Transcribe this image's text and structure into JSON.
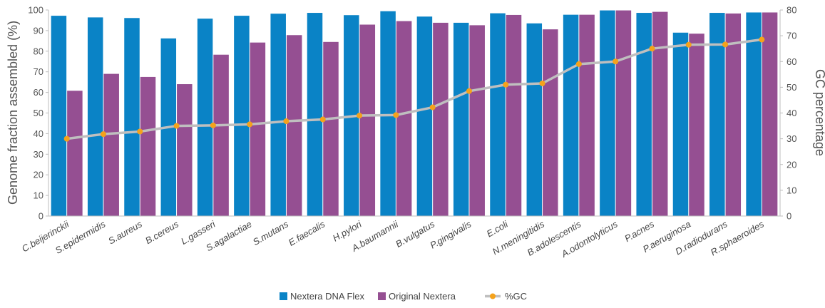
{
  "chart_data": {
    "type": "bar",
    "categories": [
      "C.beijerinckii",
      "S.epidermidis",
      "S.aureus",
      "B.cereus",
      "L.gasseri",
      "S.agalactiae",
      "S.mutans",
      "E.faecalis",
      "H.pylori",
      "A.baumannii",
      "B.vulgatus",
      "P.gingivalis",
      "E.coli",
      "N.meningitidis",
      "B.adolescentis",
      "A.odontolyticus",
      "P.acnes",
      "P.aeruginosa",
      "D.radiodurans",
      "R.sphaeroides"
    ],
    "series": [
      {
        "name": "Nextera DNA Flex",
        "kind": "bar",
        "axis": "left",
        "color": "#0a83c6",
        "values": [
          97.2,
          96.4,
          96.1,
          86.2,
          95.8,
          97.2,
          98.2,
          98.6,
          97.5,
          99.4,
          96.8,
          93.8,
          98.4,
          93.5,
          97.7,
          99.8,
          98.6,
          89.0,
          98.6,
          98.8
        ]
      },
      {
        "name": "Original Nextera",
        "kind": "bar",
        "axis": "left",
        "color": "#954f92",
        "values": [
          60.8,
          69.0,
          67.5,
          64.0,
          78.3,
          84.2,
          87.8,
          84.5,
          92.9,
          94.6,
          93.8,
          92.6,
          97.6,
          90.6,
          97.7,
          99.8,
          99.1,
          88.5,
          98.3,
          98.8
        ]
      },
      {
        "name": "%GC",
        "kind": "line",
        "axis": "right",
        "color": "#bfbfbf",
        "marker_color": "#f5a21b",
        "values": [
          30.0,
          31.8,
          32.8,
          35.0,
          35.2,
          35.6,
          36.8,
          37.5,
          39.0,
          39.2,
          42.2,
          48.5,
          51.0,
          51.5,
          59.0,
          60.0,
          65.0,
          66.5,
          66.6,
          68.5
        ]
      }
    ],
    "ylabel": "Genome fraction assembled (%)",
    "y2label": "GC percentage",
    "ylim": [
      0,
      100
    ],
    "y2lim": [
      0,
      80
    ],
    "yticks": [
      0,
      10,
      20,
      30,
      40,
      50,
      60,
      70,
      80,
      90,
      100
    ],
    "y2ticks": [
      0,
      10,
      20,
      30,
      40,
      50,
      60,
      70,
      80
    ],
    "grid": false,
    "legend": {
      "position": "bottom-center"
    }
  }
}
